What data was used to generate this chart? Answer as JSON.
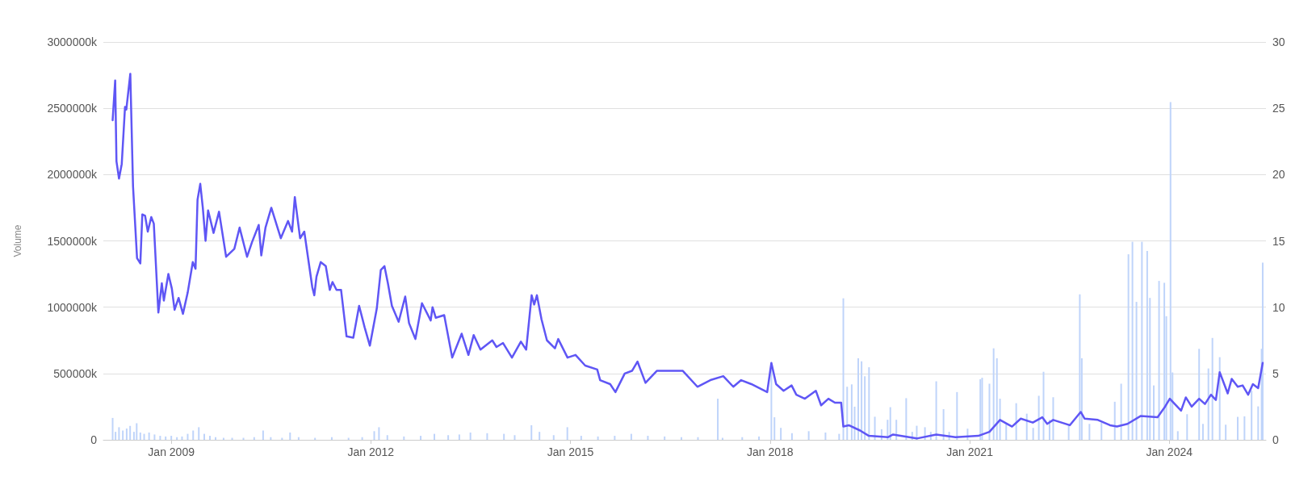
{
  "chart_data": {
    "type": "bar",
    "ylabel": "Volume",
    "xlim": [
      "2007-12-25",
      "2025-06-15"
    ],
    "xticks": [
      {
        "value": "2009-01-01",
        "label": "Jan 2009"
      },
      {
        "value": "2012-01-01",
        "label": "Jan 2012"
      },
      {
        "value": "2015-01-01",
        "label": "Jan 2015"
      },
      {
        "value": "2018-01-01",
        "label": "Jan 2018"
      },
      {
        "value": "2021-01-01",
        "label": "Jan 2021"
      },
      {
        "value": "2024-01-01",
        "label": "Jan 2024"
      }
    ],
    "ylim": [
      0,
      3000000
    ],
    "yticks": [
      {
        "value": 0,
        "label": "0"
      },
      {
        "value": 500000,
        "label": "500000k"
      },
      {
        "value": 1000000,
        "label": "1000000k"
      },
      {
        "value": 1500000,
        "label": "1500000k"
      },
      {
        "value": 2000000,
        "label": "2000000k"
      },
      {
        "value": 2500000,
        "label": "2500000k"
      },
      {
        "value": 3000000,
        "label": "3000000k"
      }
    ],
    "y2lim": [
      0,
      30
    ],
    "y2ticks": [
      0,
      5,
      10,
      15,
      20,
      25,
      30
    ],
    "grid": "y",
    "marker": "none",
    "line_style": "solid",
    "series": [
      {
        "color": "#bfd4fa",
        "x": [
          "2008-02-14",
          "2008-03-01",
          "2008-03-20",
          "2008-04-10",
          "2008-05-01",
          "2008-05-20",
          "2008-06-10",
          "2008-06-25",
          "2008-07-15",
          "2008-08-05",
          "2008-09-01",
          "2008-10-01",
          "2008-11-01",
          "2008-12-01",
          "2009-01-01",
          "2009-02-01",
          "2009-03-01",
          "2009-04-01",
          "2009-05-01",
          "2009-06-01",
          "2009-07-01",
          "2009-08-01",
          "2009-09-01",
          "2009-10-15",
          "2009-12-01",
          "2010-02-01",
          "2010-04-01",
          "2010-05-20",
          "2010-07-01",
          "2010-09-01",
          "2010-10-15",
          "2010-12-01",
          "2011-03-01",
          "2011-06-01",
          "2011-09-01",
          "2011-11-15",
          "2012-01-20",
          "2012-02-15",
          "2012-04-01",
          "2012-07-01",
          "2012-10-01",
          "2012-12-15",
          "2013-03-01",
          "2013-05-01",
          "2013-07-01",
          "2013-10-01",
          "2014-01-01",
          "2014-03-01",
          "2014-06-01",
          "2014-07-15",
          "2014-10-01",
          "2014-12-15",
          "2015-03-01",
          "2015-06-01",
          "2015-09-01",
          "2015-12-01",
          "2016-03-01",
          "2016-06-01",
          "2016-09-01",
          "2016-12-01",
          "2017-03-20",
          "2017-04-15",
          "2017-08-01",
          "2017-11-01",
          "2018-01-08",
          "2018-01-25",
          "2018-03-01",
          "2018-05-01",
          "2018-08-01",
          "2018-11-01",
          "2019-01-15",
          "2019-02-07",
          "2019-02-28",
          "2019-03-25",
          "2019-04-10",
          "2019-04-30",
          "2019-05-18",
          "2019-06-05",
          "2019-06-28",
          "2019-07-30",
          "2019-09-05",
          "2019-10-08",
          "2019-10-23",
          "2019-11-25",
          "2020-01-18",
          "2020-02-20",
          "2020-03-16",
          "2020-04-30",
          "2020-06-01",
          "2020-07-01",
          "2020-08-10",
          "2020-09-10",
          "2020-10-23",
          "2020-12-20",
          "2021-02-28",
          "2021-03-10",
          "2021-04-19",
          "2021-05-12",
          "2021-05-30",
          "2021-06-16",
          "2021-07-20",
          "2021-09-13",
          "2021-11-10",
          "2021-12-15",
          "2022-01-15",
          "2022-02-10",
          "2022-03-15",
          "2022-04-04",
          "2022-06-28",
          "2022-08-28",
          "2022-09-08",
          "2022-10-20",
          "2022-12-25",
          "2023-03-08",
          "2023-04-12",
          "2023-05-22",
          "2023-06-13",
          "2023-07-05",
          "2023-08-04",
          "2023-09-02",
          "2023-09-17",
          "2023-10-08",
          "2023-11-06",
          "2023-12-05",
          "2023-12-16",
          "2024-01-08",
          "2024-01-19",
          "2024-02-17",
          "2024-04-08",
          "2024-06-13",
          "2024-07-04",
          "2024-08-03",
          "2024-08-25",
          "2024-10-04",
          "2024-11-06",
          "2025-01-11",
          "2025-02-17",
          "2025-03-28",
          "2025-05-03",
          "2025-05-22",
          "2025-05-28"
        ],
        "values": [
          165000,
          60000,
          95000,
          70000,
          85000,
          105000,
          60000,
          125000,
          55000,
          45000,
          55000,
          40000,
          30000,
          25000,
          30000,
          20000,
          25000,
          45000,
          70000,
          95000,
          45000,
          30000,
          20000,
          15000,
          15000,
          15000,
          20000,
          70000,
          20000,
          15000,
          55000,
          20000,
          15000,
          20000,
          15000,
          20000,
          65000,
          95000,
          35000,
          25000,
          30000,
          45000,
          35000,
          40000,
          55000,
          50000,
          45000,
          35000,
          110000,
          60000,
          35000,
          95000,
          30000,
          25000,
          30000,
          45000,
          30000,
          25000,
          20000,
          20000,
          310000,
          15000,
          20000,
          25000,
          540000,
          170000,
          90000,
          50000,
          65000,
          55000,
          45000,
          1067000,
          400000,
          418000,
          250000,
          615000,
          592000,
          479000,
          547000,
          174000,
          80000,
          151000,
          246000,
          151000,
          314000,
          60000,
          106000,
          95000,
          60000,
          441000,
          231000,
          60000,
          360000,
          84000,
          457000,
          468000,
          423000,
          690000,
          615000,
          310000,
          120000,
          276000,
          197000,
          90000,
          332000,
          513000,
          150000,
          321000,
          118000,
          1097000,
          615000,
          120000,
          129000,
          287000,
          423000,
          1399000,
          1493000,
          1040000,
          1493000,
          1424000,
          1070000,
          410000,
          1198000,
          1184000,
          932000,
          2547000,
          508000,
          65000,
          193000,
          686000,
          120000,
          538000,
          768000,
          623000,
          114000,
          173000,
          177000,
          370000,
          252000,
          686000,
          1336000
        ]
      },
      {
        "type": "line",
        "axis": "y2",
        "color": "#5f56f5",
        "x": [
          "2008-02-14",
          "2008-02-28",
          "2008-03-06",
          "2008-03-20",
          "2008-04-04",
          "2008-04-22",
          "2008-04-29",
          "2008-05-21",
          "2008-06-05",
          "2008-06-27",
          "2008-07-15",
          "2008-07-26",
          "2008-08-10",
          "2008-08-25",
          "2008-09-13",
          "2008-09-27",
          "2008-10-22",
          "2008-11-10",
          "2008-11-21",
          "2008-12-16",
          "2009-01-04",
          "2009-01-19",
          "2009-02-10",
          "2009-03-06",
          "2009-04-01",
          "2009-04-29",
          "2009-05-14",
          "2009-05-25",
          "2009-06-09",
          "2009-06-23",
          "2009-07-08",
          "2009-07-22",
          "2009-08-21",
          "2009-09-20",
          "2009-10-29",
          "2009-12-13",
          "2010-01-11",
          "2010-02-21",
          "2010-03-20",
          "2010-04-26",
          "2010-05-10",
          "2010-06-02",
          "2010-07-04",
          "2010-08-25",
          "2010-10-04",
          "2010-10-26",
          "2010-11-10",
          "2010-12-09",
          "2011-01-01",
          "2011-02-14",
          "2011-02-25",
          "2011-03-09",
          "2011-04-01",
          "2011-04-29",
          "2011-05-21",
          "2011-06-05",
          "2011-06-27",
          "2011-07-22",
          "2011-08-21",
          "2011-09-27",
          "2011-10-29",
          "2011-11-28",
          "2011-12-27",
          "2012-02-03",
          "2012-02-25",
          "2012-03-16",
          "2012-04-04",
          "2012-04-26",
          "2012-06-02",
          "2012-07-08",
          "2012-07-29",
          "2012-09-02",
          "2012-10-08",
          "2012-11-25",
          "2012-12-05",
          "2012-12-23",
          "2013-02-07",
          "2013-03-23",
          "2013-05-14",
          "2013-06-20",
          "2013-07-19",
          "2013-08-25",
          "2013-10-29",
          "2013-11-21",
          "2013-12-27",
          "2014-02-14",
          "2014-04-04",
          "2014-05-03",
          "2014-06-02",
          "2014-06-16",
          "2014-07-01",
          "2014-07-26",
          "2014-08-25",
          "2014-10-08",
          "2014-10-26",
          "2014-12-16",
          "2015-01-29",
          "2015-03-23",
          "2015-05-28",
          "2015-06-13",
          "2015-08-07",
          "2015-09-05",
          "2015-10-26",
          "2015-12-05",
          "2016-01-04",
          "2016-02-17",
          "2016-04-19",
          "2016-06-23",
          "2016-09-09",
          "2016-11-28",
          "2017-02-07",
          "2017-04-19",
          "2017-06-13",
          "2017-07-26",
          "2017-09-20",
          "2017-12-16",
          "2018-01-08",
          "2018-02-03",
          "2018-03-16",
          "2018-04-29",
          "2018-05-25",
          "2018-07-11",
          "2018-09-09",
          "2018-10-08",
          "2018-11-17",
          "2018-12-23",
          "2019-01-26",
          "2019-02-07",
          "2019-03-09",
          "2019-05-10",
          "2019-06-27",
          "2019-10-11",
          "2019-11-07",
          "2020-03-16",
          "2020-07-01",
          "2020-10-15",
          "2021-02-17",
          "2021-04-19",
          "2021-06-16",
          "2021-08-21",
          "2021-10-08",
          "2021-12-13",
          "2022-02-03",
          "2022-03-02",
          "2022-04-04",
          "2022-07-04",
          "2022-09-02",
          "2022-09-23",
          "2022-12-05",
          "2023-02-10",
          "2023-03-20",
          "2023-05-17",
          "2023-07-29",
          "2023-10-29",
          "2023-12-09",
          "2024-01-04",
          "2024-03-06",
          "2024-04-01",
          "2024-05-03",
          "2024-06-13",
          "2024-07-15",
          "2024-08-17",
          "2024-09-13",
          "2024-10-04",
          "2024-11-17",
          "2024-12-09",
          "2025-01-11",
          "2025-02-07",
          "2025-03-09",
          "2025-04-04",
          "2025-05-03",
          "2025-05-28"
        ],
        "values": [
          24.1,
          27.1,
          21.0,
          19.7,
          20.8,
          25.1,
          24.9,
          27.6,
          19.1,
          13.7,
          13.3,
          17.0,
          16.9,
          15.7,
          16.8,
          16.3,
          9.6,
          11.8,
          10.5,
          12.5,
          11.4,
          9.8,
          10.7,
          9.5,
          11.1,
          13.4,
          12.9,
          18.1,
          19.3,
          17.5,
          15.0,
          17.3,
          15.6,
          17.2,
          13.8,
          14.4,
          16.0,
          13.8,
          14.9,
          16.2,
          13.9,
          16.0,
          17.5,
          15.2,
          16.5,
          15.7,
          18.3,
          15.2,
          15.7,
          11.5,
          10.9,
          12.3,
          13.4,
          13.1,
          11.3,
          11.9,
          11.3,
          11.3,
          7.8,
          7.7,
          10.1,
          8.5,
          7.1,
          9.9,
          12.8,
          13.1,
          11.8,
          10.1,
          8.9,
          10.8,
          8.8,
          7.6,
          10.3,
          9.0,
          10.0,
          9.2,
          9.4,
          6.2,
          8.0,
          6.4,
          7.9,
          6.8,
          7.5,
          7.0,
          7.3,
          6.2,
          7.4,
          6.8,
          10.9,
          10.2,
          10.9,
          9.1,
          7.5,
          6.9,
          7.6,
          6.2,
          6.4,
          5.6,
          5.3,
          4.5,
          4.2,
          3.6,
          5.0,
          5.2,
          5.9,
          4.3,
          5.2,
          5.2,
          5.2,
          4.0,
          4.5,
          4.8,
          4.0,
          4.5,
          4.2,
          3.6,
          5.8,
          4.2,
          3.7,
          4.1,
          3.4,
          3.1,
          3.7,
          2.6,
          3.1,
          2.8,
          2.8,
          1.0,
          1.1,
          0.7,
          0.3,
          0.2,
          0.4,
          0.1,
          0.4,
          0.2,
          0.3,
          0.6,
          1.5,
          1.0,
          1.6,
          1.3,
          1.7,
          1.2,
          1.5,
          1.1,
          2.1,
          1.6,
          1.5,
          1.1,
          1.0,
          1.2,
          1.8,
          1.7,
          2.5,
          3.1,
          2.2,
          3.2,
          2.5,
          3.1,
          2.7,
          3.4,
          3.0,
          5.1,
          3.5,
          4.6,
          4.0,
          4.1,
          3.4,
          4.2,
          3.9,
          5.8
        ]
      }
    ]
  }
}
